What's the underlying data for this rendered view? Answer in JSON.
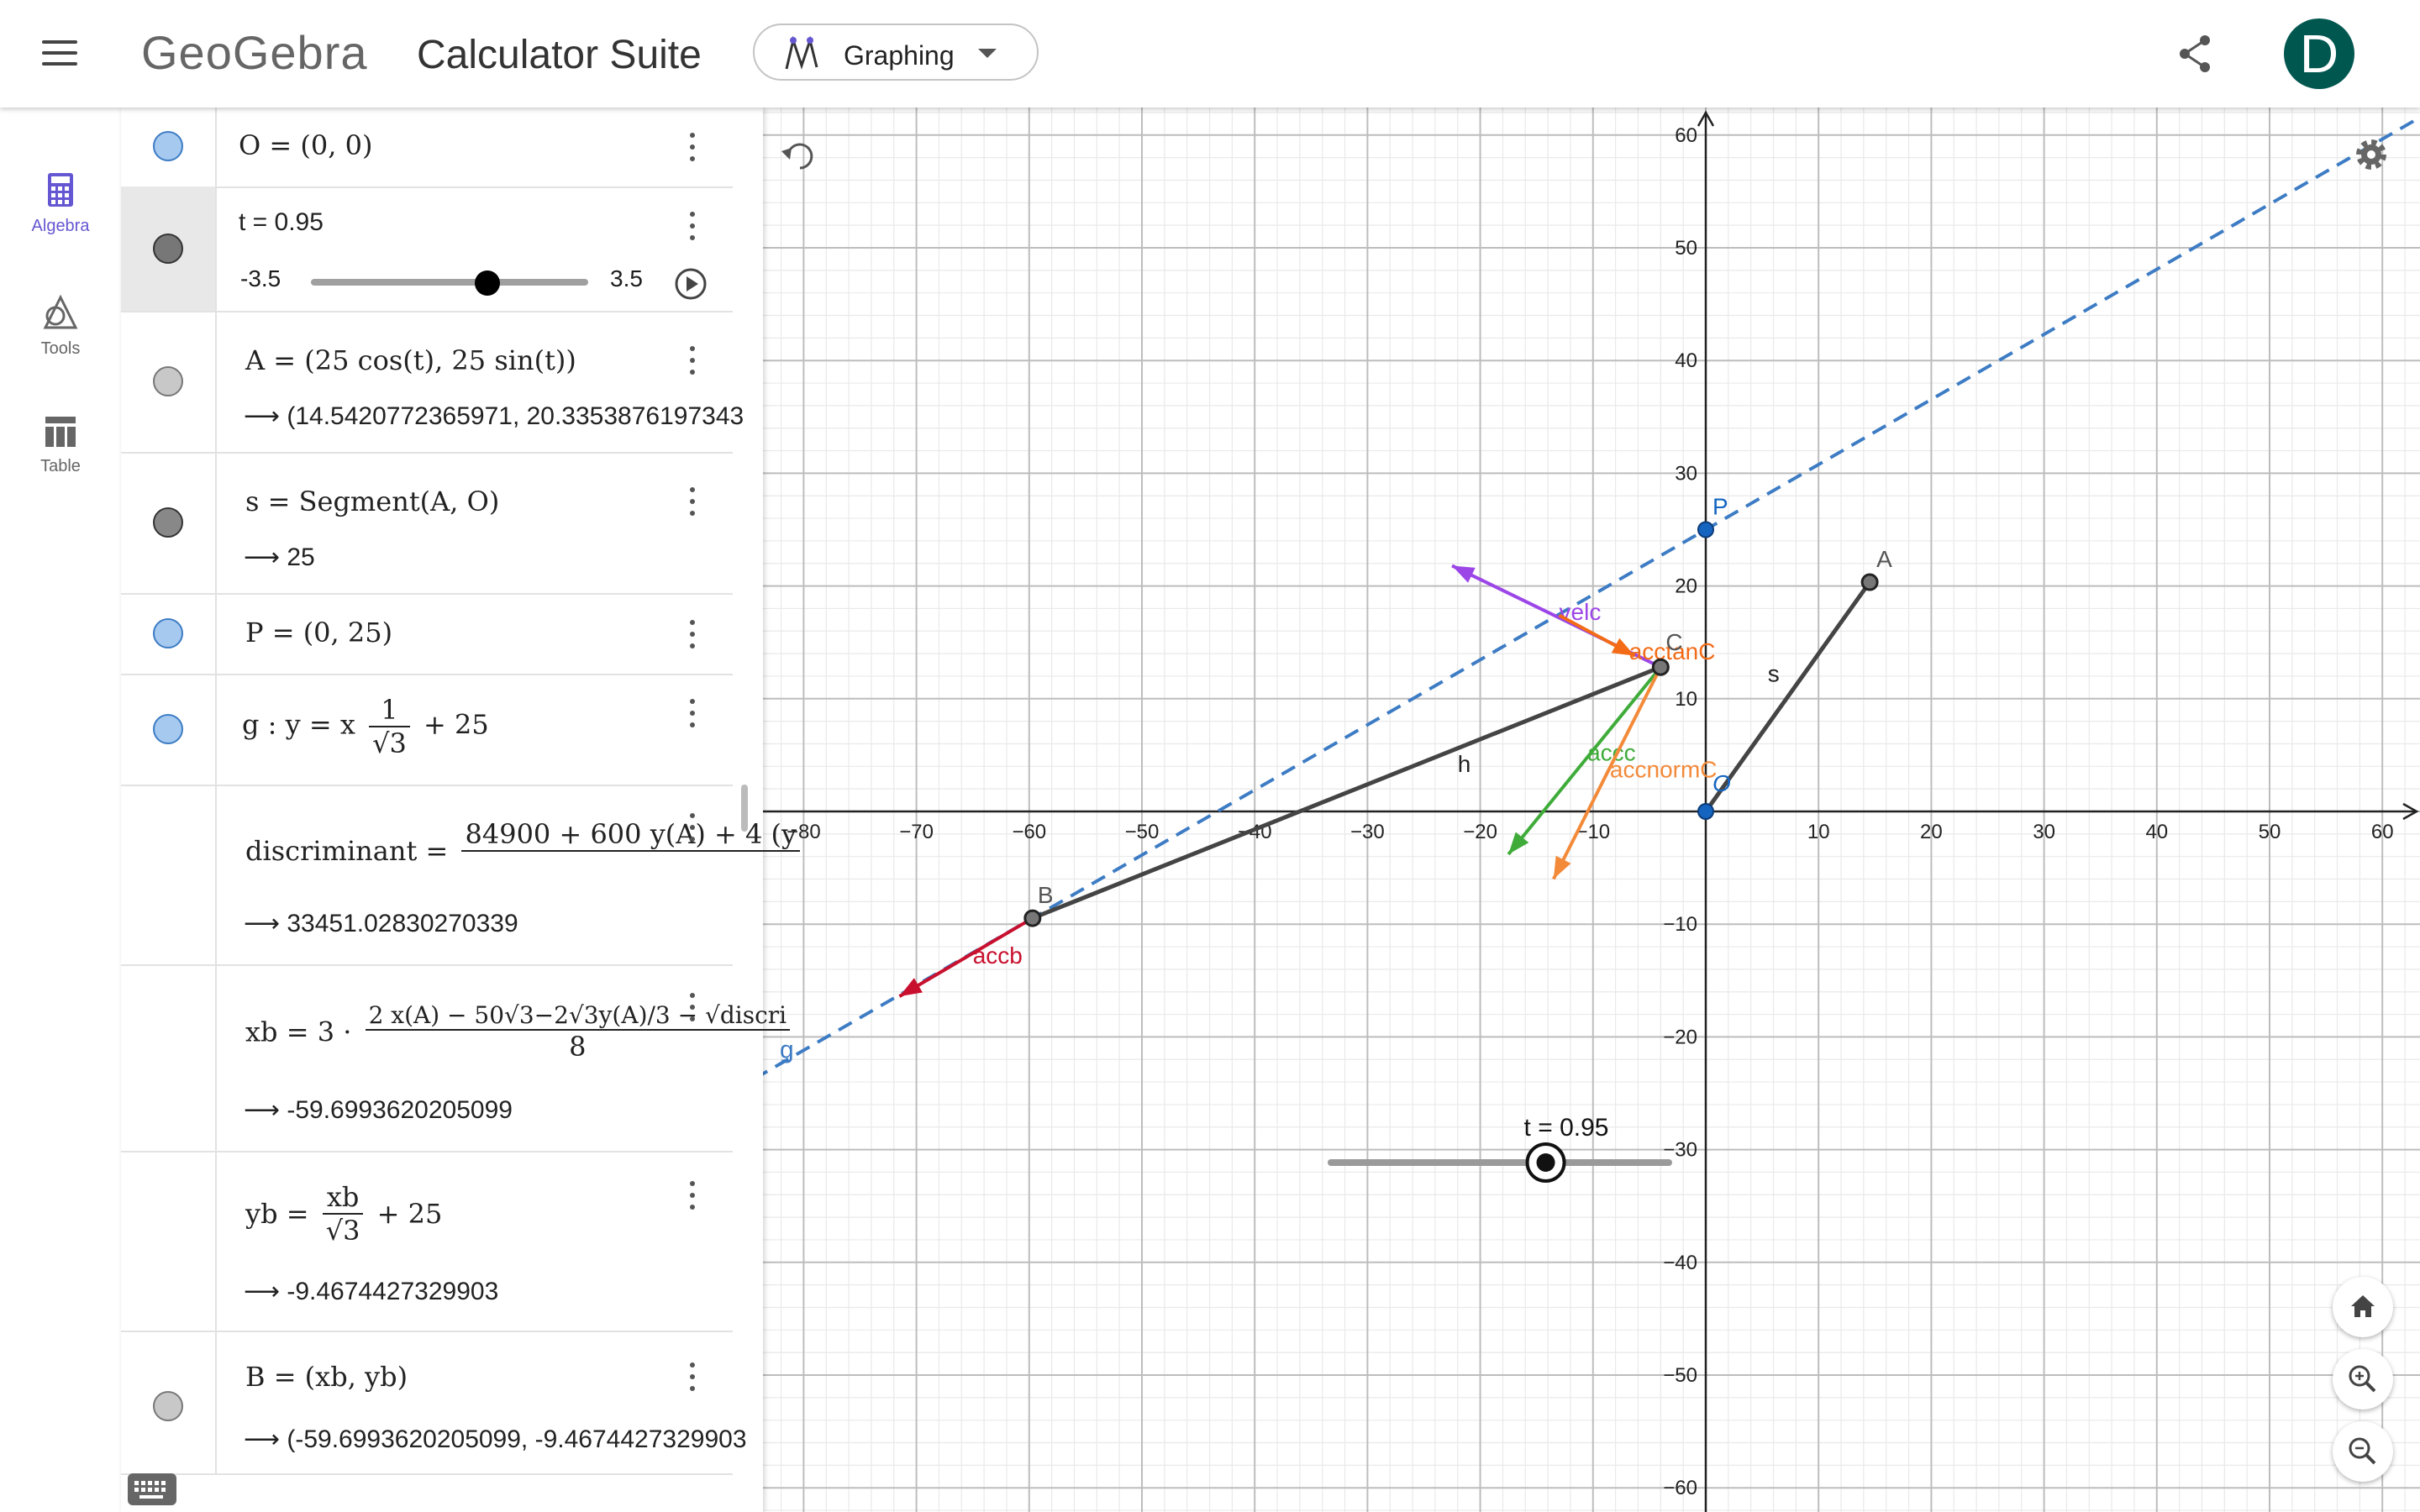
{
  "header": {
    "logo": "GeoGebra",
    "title": "Calculator Suite",
    "mode_label": "Graphing",
    "avatar_letter": "D",
    "avatar_color": "#00574f"
  },
  "nav": {
    "items": [
      {
        "label": "Algebra",
        "icon": "calculator-icon",
        "active": true
      },
      {
        "label": "Tools",
        "icon": "shapes-icon",
        "active": false
      },
      {
        "label": "Table",
        "icon": "table-icon",
        "active": false
      }
    ]
  },
  "algebra": {
    "rows": [
      {
        "expr": "O = (0, 0)"
      },
      {
        "expr": "t = 0.95",
        "slider_min": "-3.5",
        "slider_max": "3.5",
        "slider_value": 0.95
      },
      {
        "expr": "A = (25 cos(t), 25 sin(t))",
        "output": "(14.5420772365971, 20.3353876197343"
      },
      {
        "expr": "s = Segment(A, O)",
        "output": "25"
      },
      {
        "expr": "P = (0, 25)"
      },
      {
        "expr_lhs": "g : y = x",
        "frac_num": "1",
        "frac_den": "√3",
        "expr_rhs": "+ 25"
      },
      {
        "expr_lhs": "discriminant =",
        "numerator": "84900 + 600 y(A) + 4 (y",
        "output": "33451.02830270339"
      },
      {
        "expr_lhs": "xb = 3 ·",
        "numerator": "2 x(A) − 50√3−2√3y(A)/3 − √discri",
        "denominator": "8",
        "output": "-59.6993620205099"
      },
      {
        "expr_lhs": "yb =",
        "frac_num": "xb",
        "frac_den": "√3",
        "expr_rhs": "+ 25",
        "output": "-9.4674427329903"
      },
      {
        "expr": "B = (xb, yb)",
        "output": "(-59.6993620205099, -9.4674427329903"
      }
    ]
  },
  "graph": {
    "x_ticks": [
      "−80",
      "−70",
      "−60",
      "−50",
      "−40",
      "−30",
      "−20",
      "−10",
      "10",
      "20",
      "30",
      "40",
      "50",
      "60"
    ],
    "y_ticks": [
      "60",
      "50",
      "40",
      "30",
      "20",
      "10",
      "−10",
      "−20",
      "−30",
      "−40",
      "−50",
      "−60"
    ],
    "origin_label": "0",
    "points": {
      "O": {
        "x": 0,
        "y": 0,
        "label": "O"
      },
      "A": {
        "x": 14.54,
        "y": 20.34,
        "label": "A"
      },
      "P": {
        "x": 0,
        "y": 25,
        "label": "P"
      },
      "B": {
        "x": -59.7,
        "y": -9.47,
        "label": "B"
      },
      "C": {
        "x": -4.0,
        "y": 12.8,
        "label": "C"
      }
    },
    "labels": {
      "segment_s": "s",
      "segment_h": "h",
      "line_g": "g",
      "vec_velc": "velc",
      "vec_acctanC": "acctanC",
      "vec_accc": "accc",
      "vec_accnormC": "accnormC",
      "vec_accb": "accb"
    },
    "slider_caption": "t = 0.95",
    "colors": {
      "line_g": "#3d7cc4",
      "velc": "#9c46e8",
      "acctanC": "#f36b16",
      "accc": "#3fac3a",
      "accnormC": "#f38a3a",
      "accb": "#c8102e",
      "grid_major": "#bdbdbd",
      "grid_minor": "#e9e9e9"
    }
  }
}
